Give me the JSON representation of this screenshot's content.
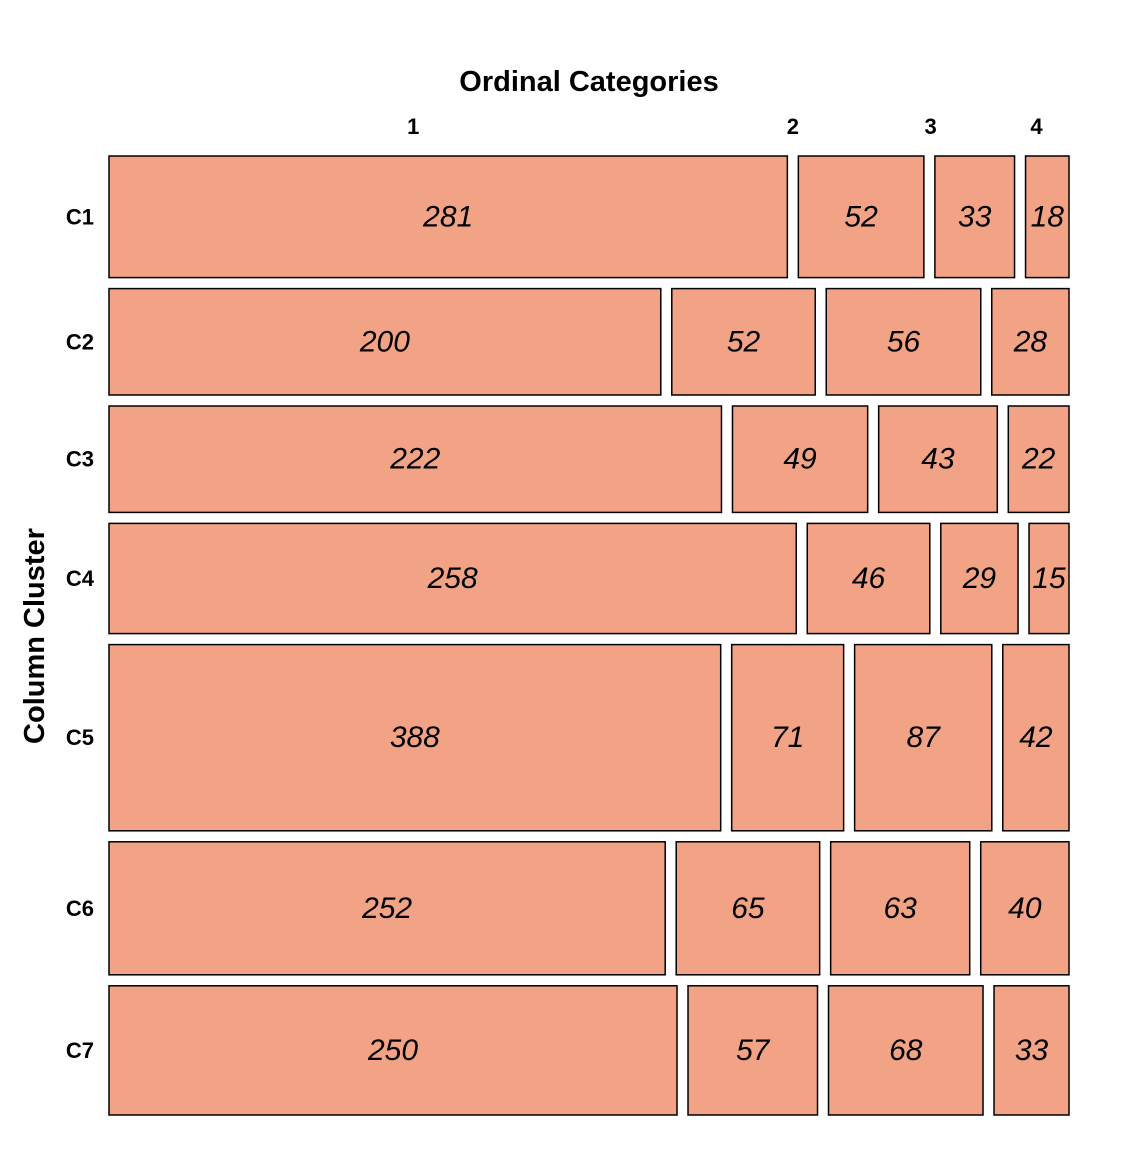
{
  "chart_data": {
    "type": "mosaic",
    "title": "Ordinal Categories",
    "ylabel": "Column Cluster",
    "columns": [
      "1",
      "2",
      "3",
      "4"
    ],
    "rows": [
      "C1",
      "C2",
      "C3",
      "C4",
      "C5",
      "C6",
      "C7"
    ],
    "values": [
      [
        281,
        52,
        33,
        18
      ],
      [
        200,
        52,
        56,
        28
      ],
      [
        222,
        49,
        43,
        22
      ],
      [
        258,
        46,
        29,
        15
      ],
      [
        388,
        71,
        87,
        42
      ],
      [
        252,
        65,
        63,
        40
      ],
      [
        250,
        57,
        68,
        33
      ]
    ],
    "fill_color": "#f2a385",
    "border_color": "#000000"
  }
}
